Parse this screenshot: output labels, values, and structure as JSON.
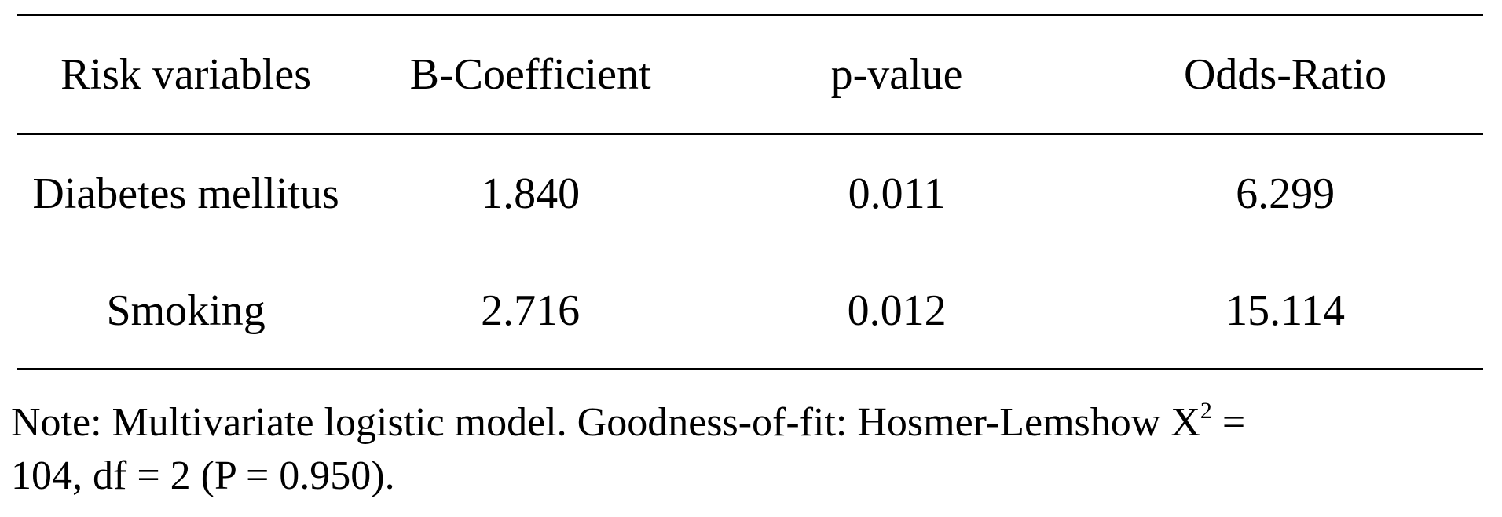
{
  "table": {
    "headers": [
      "Risk variables",
      "B-Coefficient",
      "p-value",
      "Odds-Ratio"
    ],
    "rows": [
      [
        "Diabetes mellitus",
        "1.840",
        "0.011",
        "6.299"
      ],
      [
        "Smoking",
        "2.716",
        "0.012",
        "15.114"
      ]
    ]
  },
  "note": {
    "line1_before_sup": "Note: Multivariate logistic model. Goodness-of-fit: Hosmer-Lemshow X",
    "sup": "2",
    "line1_after_sup": " =",
    "line2": "104, df = 2 (P = 0.950)."
  }
}
